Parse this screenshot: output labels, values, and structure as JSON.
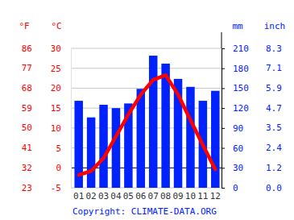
{
  "chart_data": {
    "type": "bar",
    "categories": [
      "01",
      "02",
      "03",
      "04",
      "05",
      "06",
      "07",
      "08",
      "09",
      "10",
      "11",
      "12"
    ],
    "series": [
      {
        "type": "bar",
        "color": "#0022ff",
        "axis": "y2",
        "values": [
          131,
          106,
          125,
          120,
          127,
          149,
          199,
          187,
          164,
          152,
          131,
          146
        ]
      },
      {
        "type": "line",
        "color": "#ff0000",
        "values": [
          -1.8,
          -0.8,
          2.4,
          7.9,
          13.4,
          18.4,
          22.1,
          23.3,
          18.4,
          12.0,
          5.7,
          -0.4
        ]
      }
    ],
    "ylabel": "°C",
    "ylim": [
      -5,
      30
    ],
    "yticks": [
      -5,
      0,
      5,
      10,
      15,
      20,
      25,
      30
    ],
    "ylabel_f": "°F",
    "yticks_f": [
      {
        "value": -5,
        "label": "23"
      },
      {
        "value": 0,
        "label": "32"
      },
      {
        "value": 5,
        "label": "41"
      },
      {
        "value": 10,
        "label": "50"
      },
      {
        "value": 15,
        "label": "59"
      },
      {
        "value": 20,
        "label": "68"
      },
      {
        "value": 25,
        "label": "77"
      },
      {
        "value": 30,
        "label": "86"
      }
    ],
    "y2label": "mm",
    "y2lim": [
      0,
      210
    ],
    "y2ticks": [
      0,
      30,
      60,
      90,
      120,
      150,
      180,
      210
    ],
    "y2label_inch": "inch",
    "y2ticks_inch": [
      {
        "value": 0,
        "label": "0.0"
      },
      {
        "value": 30,
        "label": "1.2"
      },
      {
        "value": 60,
        "label": "2.4"
      },
      {
        "value": 90,
        "label": "3.5"
      },
      {
        "value": 120,
        "label": "4.7"
      },
      {
        "value": 150,
        "label": "5.9"
      },
      {
        "value": 180,
        "label": "7.1"
      },
      {
        "value": 210,
        "label": "8.3"
      }
    ],
    "grid": true,
    "credit": "Copyright: CLIMATE-DATA.ORG"
  }
}
